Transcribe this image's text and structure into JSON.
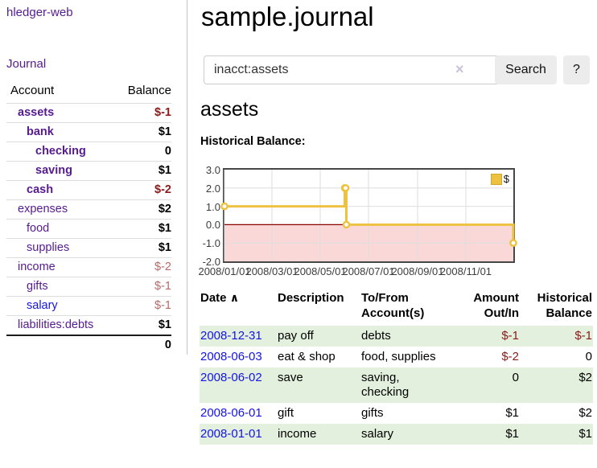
{
  "app": {
    "brand": "hledger-web",
    "journal_link": "Journal"
  },
  "sidebar": {
    "header": {
      "account": "Account",
      "balance": "Balance"
    },
    "accounts": [
      {
        "name": "assets",
        "indent": 0,
        "bold": true,
        "balance": "$-1",
        "neg": "strong",
        "link": "purple"
      },
      {
        "name": "bank",
        "indent": 1,
        "bold": true,
        "balance": "$1",
        "neg": "none",
        "link": "purple"
      },
      {
        "name": "checking",
        "indent": 2,
        "bold": true,
        "balance": "0",
        "neg": "none",
        "link": "purple"
      },
      {
        "name": "saving",
        "indent": 2,
        "bold": true,
        "balance": "$1",
        "neg": "none",
        "link": "purple"
      },
      {
        "name": "cash",
        "indent": 1,
        "bold": true,
        "balance": "$-2",
        "neg": "strong",
        "link": "purple"
      },
      {
        "name": "expenses",
        "indent": 0,
        "bold": false,
        "balance": "$2",
        "neg": "none",
        "link": "purple"
      },
      {
        "name": "food",
        "indent": 1,
        "bold": false,
        "balance": "$1",
        "neg": "none",
        "link": "purple"
      },
      {
        "name": "supplies",
        "indent": 1,
        "bold": false,
        "balance": "$1",
        "neg": "none",
        "link": "purple"
      },
      {
        "name": "income",
        "indent": 0,
        "bold": false,
        "balance": "$-2",
        "neg": "soft",
        "link": "purple"
      },
      {
        "name": "gifts",
        "indent": 1,
        "bold": false,
        "balance": "$-1",
        "neg": "soft",
        "link": "purple"
      },
      {
        "name": "salary",
        "indent": 1,
        "bold": false,
        "balance": "$-1",
        "neg": "soft",
        "link": "blue"
      },
      {
        "name": "liabilities:debts",
        "indent": 0,
        "bold": false,
        "balance": "$1",
        "neg": "none",
        "link": "purple"
      }
    ],
    "total": "0"
  },
  "header": {
    "title": "sample.journal"
  },
  "search": {
    "value": "inacct:assets",
    "clear_glyph": "×",
    "button_label": "Search",
    "help_label": "?"
  },
  "account_page": {
    "title": "assets",
    "chart_label": "Historical Balance:"
  },
  "chart_data": {
    "type": "line",
    "step": true,
    "title": "Historical Balance:",
    "series": [
      {
        "name": "$",
        "color": "#EDC240",
        "points": [
          [
            "2008-01-01",
            1
          ],
          [
            "2008-06-01",
            2
          ],
          [
            "2008-06-02",
            2
          ],
          [
            "2008-06-03",
            0
          ],
          [
            "2008-12-31",
            -1
          ]
        ]
      }
    ],
    "x_range": [
      "2008-01-01",
      "2008-12-31"
    ],
    "ylim": [
      -2,
      3
    ],
    "y_ticks": [
      "3.0",
      "2.0",
      "1.0",
      "0.0",
      "-1.0",
      "-2.0"
    ],
    "x_ticks": [
      "2008/01/01",
      "2008/03/01",
      "2008/05/01",
      "2008/07/01",
      "2008/09/01",
      "2008/11/01"
    ],
    "grid": true,
    "zero_line_color": "#8b0000",
    "negative_fill": "#fbd8d8",
    "legend": {
      "label": "$",
      "position": "top-right",
      "swatch_color": "#EDC240"
    }
  },
  "register": {
    "columns": [
      {
        "label": "Date",
        "align": "left"
      },
      {
        "label": "Description",
        "align": "left"
      },
      {
        "label": "To/From Account(s)",
        "align": "left"
      },
      {
        "label": "Amount Out/In",
        "align": "right"
      },
      {
        "label": "Historical Balance",
        "align": "right"
      }
    ],
    "sort_glyph": "∧",
    "rows": [
      {
        "date": "2008-12-31",
        "description": "pay off",
        "accounts": "debts",
        "amount": "$-1",
        "amount_neg": true,
        "balance": "$-1",
        "balance_neg": true
      },
      {
        "date": "2008-06-03",
        "description": "eat & shop",
        "accounts": "food, supplies",
        "amount": "$-2",
        "amount_neg": true,
        "balance": "0",
        "balance_neg": false
      },
      {
        "date": "2008-06-02",
        "description": "save",
        "accounts": "saving, checking",
        "amount": "0",
        "amount_neg": false,
        "balance": "$2",
        "balance_neg": false
      },
      {
        "date": "2008-06-01",
        "description": "gift",
        "accounts": "gifts",
        "amount": "$1",
        "amount_neg": false,
        "balance": "$2",
        "balance_neg": false
      },
      {
        "date": "2008-01-01",
        "description": "income",
        "accounts": "salary",
        "amount": "$1",
        "amount_neg": false,
        "balance": "$1",
        "balance_neg": false
      }
    ]
  }
}
